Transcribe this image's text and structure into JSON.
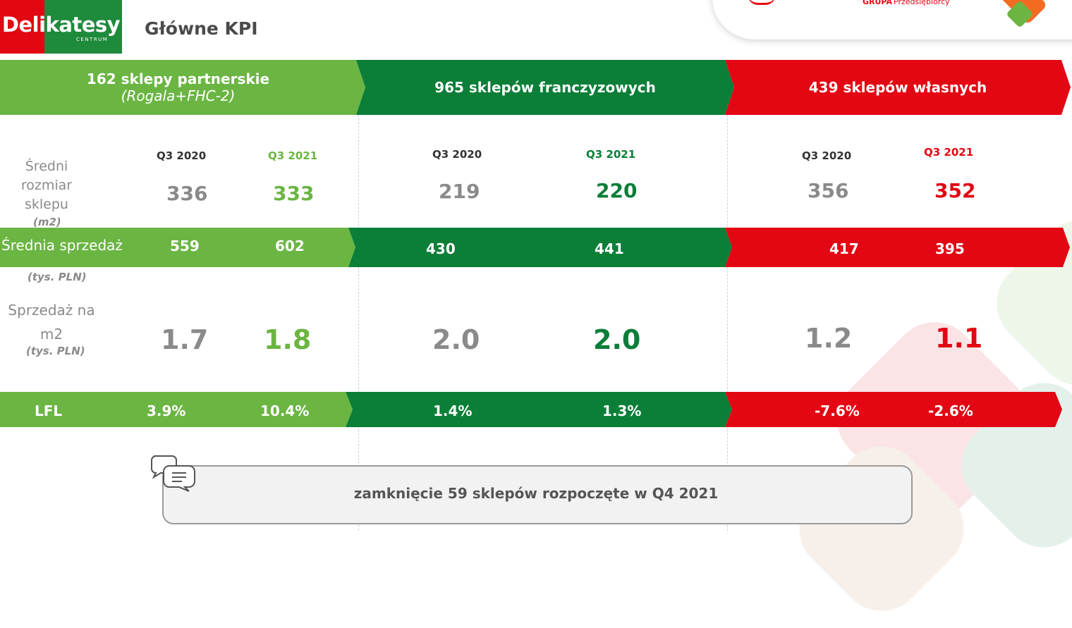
{
  "header": {
    "logo_text": "Delikatesy",
    "logo_sub": "CENTRUM",
    "title": "Główne KPI",
    "partner_brand": "GRUPA",
    "partner_brand2": "Przedsiębiorcy"
  },
  "segments": [
    {
      "title": "162 sklepy partnerskie",
      "subtitle": "(Rogala+FHC-2)",
      "color": "#6bb543"
    },
    {
      "title": "965 sklepów franczyzowych",
      "subtitle": "",
      "color": "#0b7e38"
    },
    {
      "title": "439 sklepów własnych",
      "subtitle": "",
      "color": "#e30613"
    }
  ],
  "period_labels": {
    "p1": {
      "q2020": "Q3 2020",
      "q2021": "Q3 2021"
    },
    "p2": {
      "q2020": "Q3 2020",
      "q2021": "Q3 2021"
    },
    "p3": {
      "q2020": "Q3 2020",
      "q2021": "Q3 2021"
    }
  },
  "rows": {
    "size": {
      "label_lines": [
        "Średni",
        "rozmiar",
        "sklepu"
      ],
      "unit": "(m2)",
      "values": [
        "336",
        "333",
        "219",
        "220",
        "356",
        "352"
      ]
    },
    "sales": {
      "label": "Średnia sprzedaż",
      "unit": "(tys. PLN)",
      "values": [
        "559",
        "602",
        "430",
        "441",
        "417",
        "395"
      ]
    },
    "sales_m2": {
      "label_lines": [
        "Sprzedaż na",
        "m2"
      ],
      "unit": "(tys. PLN)",
      "values": [
        "1.7",
        "1.8",
        "2.0",
        "2.0",
        "1.2",
        "1.1"
      ]
    },
    "lfl": {
      "label": "LFL",
      "values": [
        "3.9%",
        "10.4%",
        "1.4%",
        "1.3%",
        "-7.6%",
        "-2.6%"
      ]
    }
  },
  "callout": {
    "text": "zamknięcie 59 sklepów rozpoczęte w Q4 2021"
  },
  "colors": {
    "light_green": "#6bb543",
    "dark_green": "#0b7e38",
    "red": "#e30613",
    "grey_text": "#8a8a8a"
  }
}
